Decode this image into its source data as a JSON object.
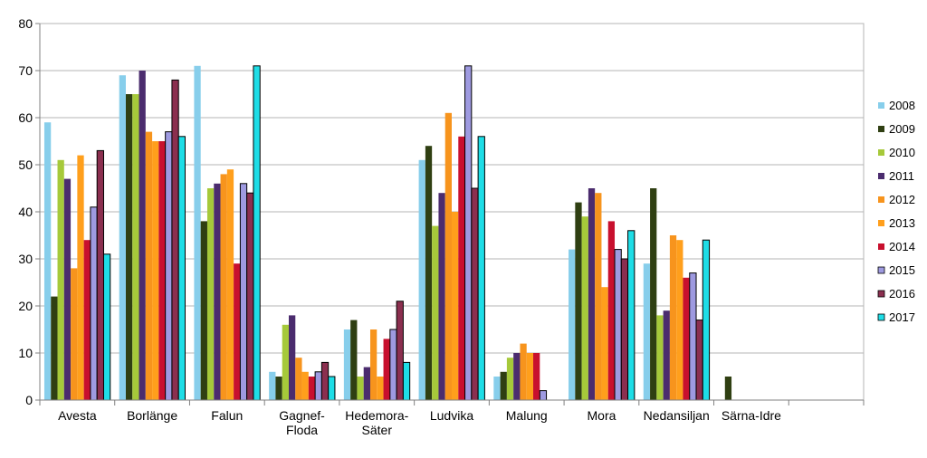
{
  "chart_data": {
    "type": "bar",
    "title": "",
    "xlabel": "",
    "ylabel": "",
    "ylim": [
      0,
      80
    ],
    "yticks": [
      0,
      10,
      20,
      30,
      40,
      50,
      60,
      70,
      80
    ],
    "grid": true,
    "legend_position": "right",
    "categories": [
      [
        "Avesta"
      ],
      [
        "Borlänge"
      ],
      [
        "Falun"
      ],
      [
        "Gagnef-",
        "Floda"
      ],
      [
        "Hedemora-",
        "Säter"
      ],
      [
        "Ludvika"
      ],
      [
        "Malung"
      ],
      [
        "Mora"
      ],
      [
        "Nedansiljan"
      ],
      [
        "Särna-Idre"
      ]
    ],
    "series": [
      {
        "name": "2008",
        "color": "#87CEEB",
        "values": [
          59,
          69,
          71,
          6,
          15,
          51,
          5,
          32,
          29,
          0
        ]
      },
      {
        "name": "2009",
        "color": "#2F3F12",
        "values": [
          22,
          65,
          38,
          5,
          17,
          54,
          6,
          42,
          45,
          5
        ]
      },
      {
        "name": "2010",
        "color": "#A6C93A",
        "values": [
          51,
          65,
          45,
          16,
          5,
          37,
          9,
          39,
          18,
          0
        ]
      },
      {
        "name": "2011",
        "color": "#4B2C6E",
        "values": [
          47,
          70,
          46,
          18,
          7,
          44,
          10,
          45,
          19,
          0
        ]
      },
      {
        "name": "2012",
        "color": "#F7941D",
        "values": [
          28,
          57,
          48,
          9,
          15,
          61,
          12,
          44,
          35,
          0
        ]
      },
      {
        "name": "2013",
        "color": "#FF9F1C",
        "values": [
          52,
          55,
          49,
          6,
          5,
          40,
          10,
          24,
          34,
          0
        ]
      },
      {
        "name": "2014",
        "color": "#C8102E",
        "values": [
          34,
          55,
          29,
          5,
          13,
          56,
          10,
          38,
          26,
          0
        ]
      },
      {
        "name": "2015",
        "color": "#9E9AE0",
        "values": [
          41,
          57,
          46,
          6,
          15,
          71,
          2,
          32,
          27,
          0
        ]
      },
      {
        "name": "2016",
        "color": "#8B2F4F",
        "values": [
          53,
          68,
          44,
          8,
          21,
          45,
          0,
          30,
          17,
          0
        ]
      },
      {
        "name": "2017",
        "color": "#1EDDE6",
        "values": [
          31,
          56,
          71,
          5,
          8,
          56,
          0,
          36,
          34,
          0
        ]
      }
    ]
  }
}
